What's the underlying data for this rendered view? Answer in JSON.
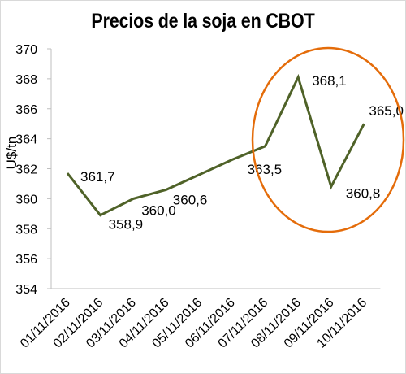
{
  "chart_data": {
    "type": "line",
    "title": "Precios de la soja en CBOT",
    "ylabel": "U$/tn",
    "xlabel": "",
    "ylim": [
      354,
      370
    ],
    "ytick_step": 2,
    "grid": false,
    "line_color": "#4f6228",
    "highlight_color": "#e46c0a",
    "categories": [
      "01/11/2016",
      "02/11/2016",
      "03/11/2016",
      "04/11/2016",
      "05/11/2016",
      "06/11/2016",
      "07/11/2016",
      "08/11/2016",
      "09/11/2016",
      "10/11/2016"
    ],
    "values": [
      361.7,
      358.9,
      360.0,
      360.6,
      361.6,
      362.6,
      363.5,
      368.1,
      360.8,
      365.0
    ],
    "labels": [
      "361,7",
      "358,9",
      "360,0",
      "360,6",
      "",
      "",
      "363,5",
      "368,1",
      "360,8",
      "365,0"
    ]
  }
}
